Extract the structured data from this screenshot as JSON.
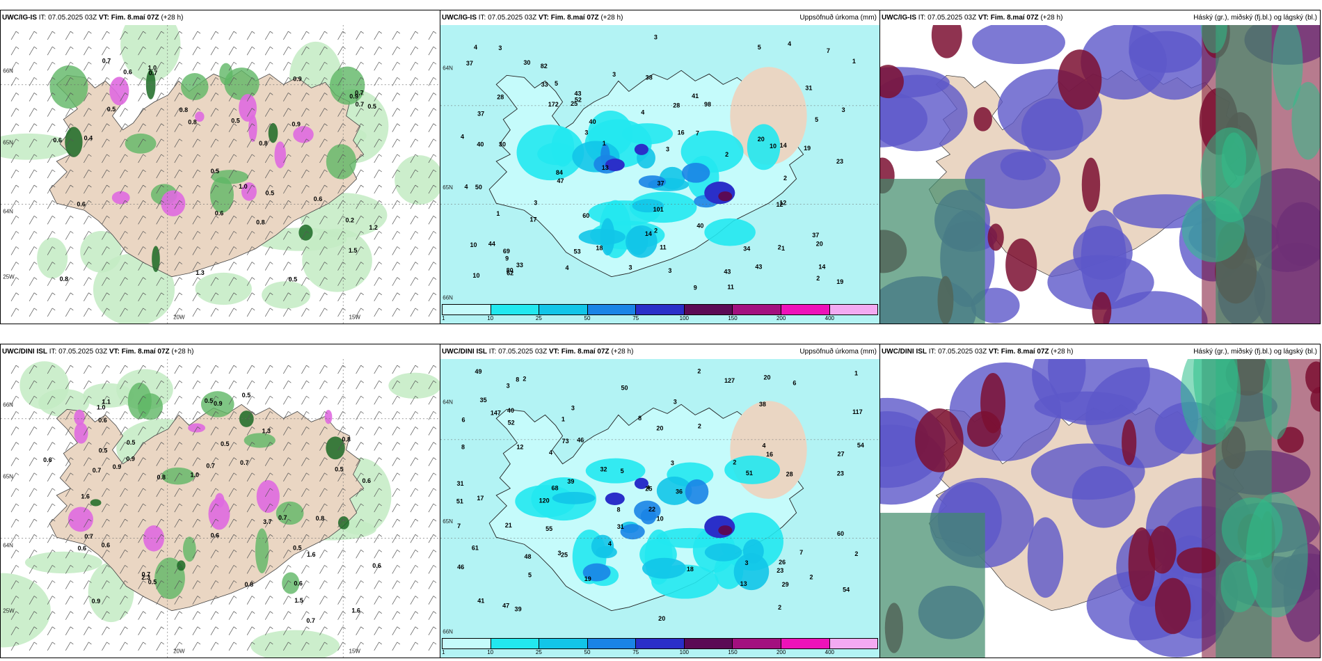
{
  "panels": [
    {
      "model": "UWC/IG-IS",
      "it": "IT: 07.05.2025 03Z",
      "vt_label": "VT:",
      "vt_value": "Fim. 8.maí 07Z",
      "lead": "(+28 h)",
      "right_title": "",
      "type": "wind-precip",
      "values": [
        "0.8",
        "0.7",
        "0.5",
        "0.9",
        "0.7",
        "0.6",
        "0.5",
        "0.9",
        "1.0",
        "0.2",
        "1.2",
        "0.6",
        "0.8",
        "0.5",
        "1.5",
        "0.9",
        "0.5",
        "0.5",
        "0.7",
        "0.7",
        "1.0",
        "0.6",
        "0.4",
        "0.5",
        "0.8",
        "0.8",
        "1.3",
        "0.8",
        "0.6",
        "0.6"
      ],
      "axis_labels": [
        "20W",
        "15W",
        "25W",
        "64N",
        "65N",
        "66N"
      ]
    },
    {
      "model": "UWC/IG-IS",
      "it": "IT: 07.05.2025 03Z",
      "vt_label": "VT:",
      "vt_value": "Fim. 8.maí 07Z",
      "lead": "(+28 h)",
      "right_title": "Uppsöfnuð úrkoma (mm)",
      "type": "accum-precip",
      "values": [
        "3",
        "3",
        "3",
        "4",
        "4",
        "20",
        "25",
        "14",
        "14",
        "28",
        "14",
        "11",
        "12",
        "12",
        "16",
        "34",
        "30",
        "19",
        "30",
        "20",
        "23",
        "11",
        "10",
        "9",
        "37",
        "40",
        "43",
        "33",
        "19",
        "62",
        "80",
        "82",
        "98",
        "60",
        "38",
        "28",
        "50",
        "40",
        "172",
        "43",
        "43",
        "4",
        "3",
        "3",
        "47",
        "31",
        "44",
        "84",
        "69",
        "52",
        "18",
        "41",
        "37",
        "37",
        "40",
        "37",
        "17",
        "101",
        "33",
        "9",
        "7",
        "3",
        "3",
        "5",
        "5",
        "10",
        "10",
        "4",
        "5",
        "3",
        "3",
        "2",
        "2",
        "2",
        "1",
        "1",
        "2",
        "4",
        "1",
        "7",
        "4",
        "53",
        "13",
        "2",
        "1"
      ],
      "axis_labels": [
        "65N",
        "64N",
        "66N"
      ]
    },
    {
      "model": "UWC/IG-IS",
      "it": "IT: 07.05.2025 03Z",
      "vt_label": "VT:",
      "vt_value": "Fim. 8.maí 07Z",
      "lead": "(+28 h)",
      "right_title": "Háský (gr.), miðský (fj.bl.) og lágský (bl.)",
      "type": "clouds",
      "values": [],
      "axis_labels": []
    },
    {
      "model": "UWC/DINI ISL",
      "it": "IT: 07.05.2025 03Z",
      "vt_label": "VT:",
      "vt_value": "Fim. 8.maí 07Z",
      "lead": "(+28 h)",
      "right_title": "",
      "type": "wind-precip",
      "values": [
        "0.8",
        "0.6",
        "0.7",
        "0.8",
        "0.9",
        "1.6",
        "0.6",
        "0.5",
        "0.6",
        "0.9",
        "0.7",
        "0.8",
        "2.3",
        "0.6",
        "0.5",
        "0.5",
        "0.7",
        "1.6",
        "1.0",
        "0.7",
        "0.5",
        "0.6",
        "0.5",
        "0.7",
        "0.6",
        "1.1",
        "1.0",
        "0.7",
        "0.9",
        "0.8",
        "0.6",
        "0.6",
        "0.9",
        "0.5",
        "0.5",
        "0.7",
        "1.3",
        "1.6",
        "0.5",
        "3.7",
        "1.5"
      ],
      "axis_labels": [
        "20W",
        "15W",
        "25W",
        "64N",
        "65N",
        "66N"
      ]
    },
    {
      "model": "UWC/DINI ISL",
      "it": "IT: 07.05.2025 03Z",
      "vt_label": "VT:",
      "vt_value": "Fim. 8.maí 07Z",
      "lead": "(+28 h)",
      "right_title": "Uppsöfnuð úrkoma (mm)",
      "type": "accum-precip",
      "values": [
        "4",
        "3",
        "8",
        "7",
        "8",
        "4",
        "6",
        "20",
        "25",
        "35",
        "20",
        "12",
        "19",
        "10",
        "22",
        "21",
        "28",
        "18",
        "29",
        "23",
        "16",
        "13",
        "20",
        "8",
        "39",
        "17",
        "26",
        "25",
        "51",
        "46",
        "46",
        "23",
        "68",
        "147",
        "120",
        "60",
        "49",
        "40",
        "38",
        "55",
        "61",
        "54",
        "27",
        "39",
        "31",
        "36",
        "48",
        "47",
        "32",
        "41",
        "127",
        "51",
        "73",
        "117",
        "54",
        "52",
        "31",
        "50",
        "1",
        "3",
        "5",
        "2",
        "2",
        "3",
        "7",
        "2",
        "4",
        "6",
        "4",
        "8",
        "2",
        "2",
        "3",
        "2",
        "3",
        "1",
        "2",
        "5",
        "3"
      ],
      "axis_labels": [
        "65N",
        "64N",
        "66N"
      ]
    },
    {
      "model": "UWC/DINI ISL",
      "it": "IT: 07.05.2025 03Z",
      "vt_label": "VT:",
      "vt_value": "Fim. 8.maí 07Z",
      "lead": "(+28 h)",
      "right_title": "Háský (gr.), miðský (fj.bl.) og lágský (bl.)",
      "type": "clouds",
      "values": [],
      "axis_labels": []
    }
  ],
  "colorbar": {
    "colors": [
      "#c5fbfb",
      "#22e8ef",
      "#12c5e8",
      "#1a84e6",
      "#2a2fc9",
      "#5b0a55",
      "#a3107f",
      "#ee12b9",
      "#f3aaf2"
    ],
    "ticks": [
      "1",
      "10",
      "25",
      "50",
      "75",
      "100",
      "150",
      "200",
      "400"
    ]
  },
  "colors": {
    "land": "#ead6c3",
    "sea": "#ffffff",
    "precip_light": "#c3ebc3",
    "precip_medium": "#5fb765",
    "precip_heavy": "#1b6a24",
    "precip_pink": "#df6ae0",
    "accum_sea": "#b3f3f4",
    "cloud_high": "#3f8a6a",
    "cloud_mid": "#5c57c9",
    "cloud_low": "#7b0f31"
  }
}
